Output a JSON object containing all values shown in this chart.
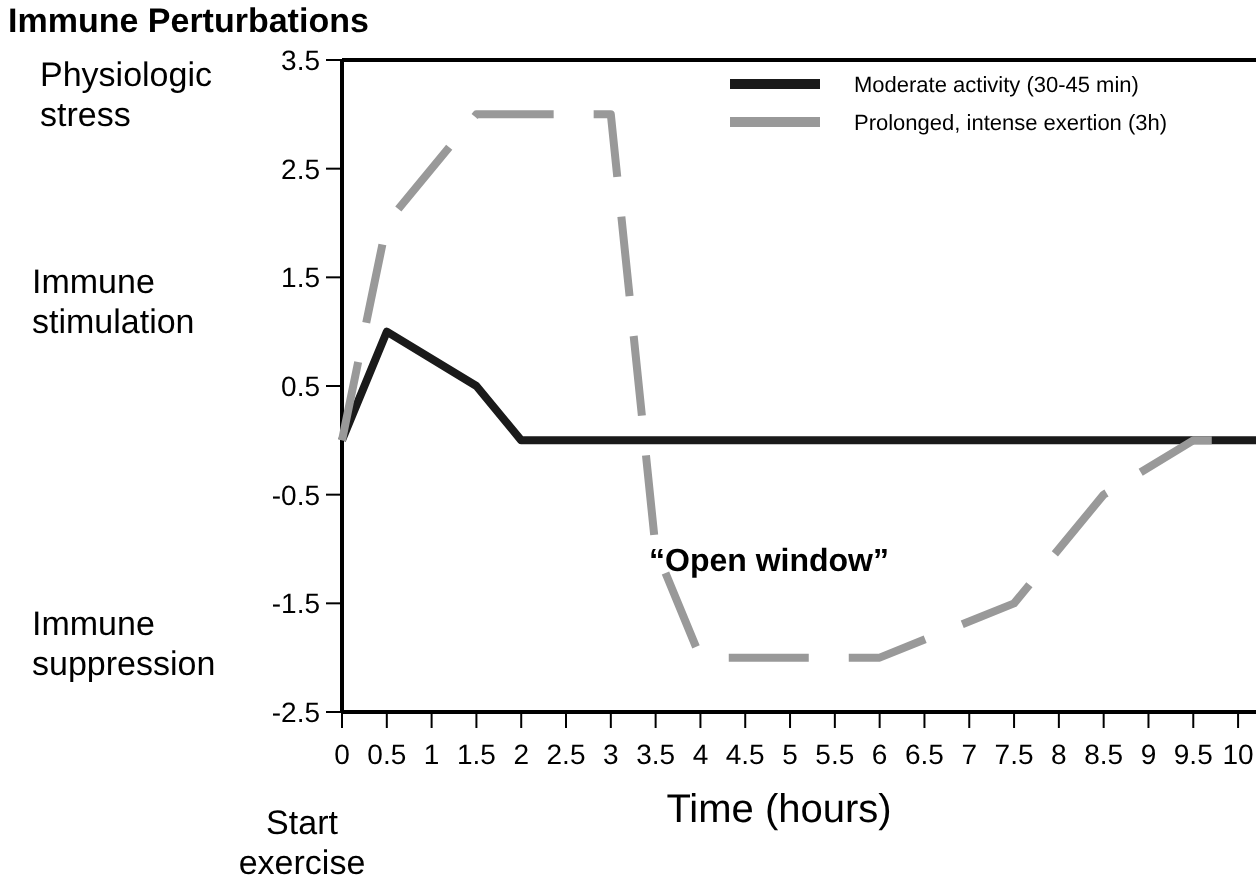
{
  "chart_data": {
    "type": "line",
    "title": "Immune Perturbations",
    "xlabel": "Time (hours)",
    "xlim": [
      0,
      10.2
    ],
    "xticks": [
      0,
      0.5,
      1,
      1.5,
      2,
      2.5,
      3,
      3.5,
      4,
      4.5,
      5,
      5.5,
      6,
      6.5,
      7,
      7.5,
      8,
      8.5,
      9,
      9.5,
      10
    ],
    "ylim": [
      -2.5,
      3.5
    ],
    "yticks": [
      -2.5,
      -1.5,
      -0.5,
      0.5,
      1.5,
      2.5,
      3.5
    ],
    "series": [
      {
        "name": "Moderate activity (30-45 min)",
        "color": "#1a1a1a",
        "line_style": "solid",
        "x": [
          0,
          0.5,
          1.5,
          2,
          10.2
        ],
        "values": [
          0,
          1,
          0.5,
          0,
          0
        ]
      },
      {
        "name": "Prolonged, intense exertion (3h)",
        "color": "#999999",
        "line_style": "dashed",
        "x": [
          0,
          0.5,
          1.5,
          3,
          3.5,
          4,
          6,
          7.5,
          8.5,
          9.5,
          10
        ],
        "values": [
          0,
          2,
          3,
          3,
          -1,
          -2,
          -2,
          -1.5,
          -0.5,
          0,
          0
        ]
      }
    ],
    "annotations": [
      "Physiologic stress",
      "Immune stimulation",
      "Immune suppression",
      "Start exercise",
      "“Open window”"
    ],
    "legend": "top right",
    "grid": false,
    "marker": "none"
  }
}
